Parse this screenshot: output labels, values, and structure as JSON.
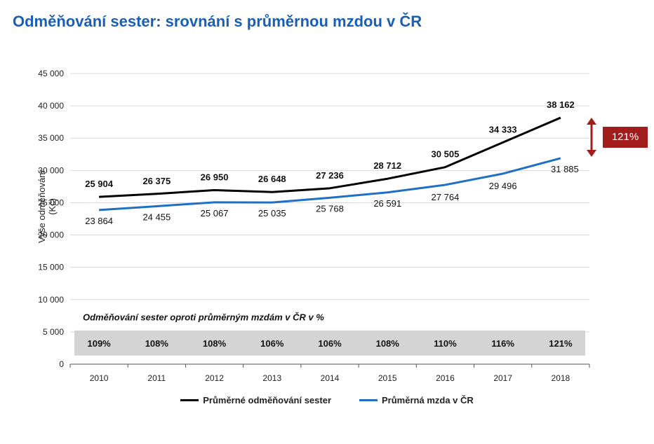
{
  "header": {
    "title": "Odměňování sester: srovnání s průměrnou mzdou v ČR"
  },
  "chart_data": {
    "type": "line",
    "ylabel": "Výše odměňování (Kč)",
    "ylim": [
      0,
      45000
    ],
    "yticks": [
      0,
      5000,
      10000,
      15000,
      20000,
      25000,
      30000,
      35000,
      40000,
      45000
    ],
    "ytick_labels": [
      "0",
      "5 000",
      "10 000",
      "15 000",
      "20 000",
      "25 000",
      "30 000",
      "35 000",
      "40 000",
      "45 000"
    ],
    "grid": true,
    "legend_position": "bottom",
    "categories": [
      "2010",
      "2011",
      "2012",
      "2013",
      "2014",
      "2015",
      "2016",
      "2017",
      "2018"
    ],
    "series": [
      {
        "name": "Průměrné odměňování sester",
        "color": "#000000",
        "values": [
          25904,
          26375,
          26950,
          26648,
          27236,
          28712,
          30505,
          34333,
          38162
        ],
        "labels": [
          "25 904",
          "26 375",
          "26 950",
          "26 648",
          "27 236",
          "28 712",
          "30 505",
          "34 333",
          "38 162"
        ]
      },
      {
        "name": "Průměrná mzda v ČR",
        "color": "#1f6fc5",
        "values": [
          23864,
          24455,
          25067,
          25035,
          25768,
          26591,
          27764,
          29496,
          31885
        ],
        "labels": [
          "23 864",
          "24 455",
          "25 067",
          "25 035",
          "25 768",
          "26 591",
          "27 764",
          "29 496",
          "31 885"
        ]
      }
    ],
    "ratio_band": {
      "title": "Odměňování sester oproti průměrným mzdám v ČR v %",
      "values": [
        "109%",
        "108%",
        "108%",
        "106%",
        "106%",
        "108%",
        "110%",
        "116%",
        "121%"
      ]
    },
    "callout": {
      "text": "121%",
      "color": "#a31c1c"
    }
  }
}
